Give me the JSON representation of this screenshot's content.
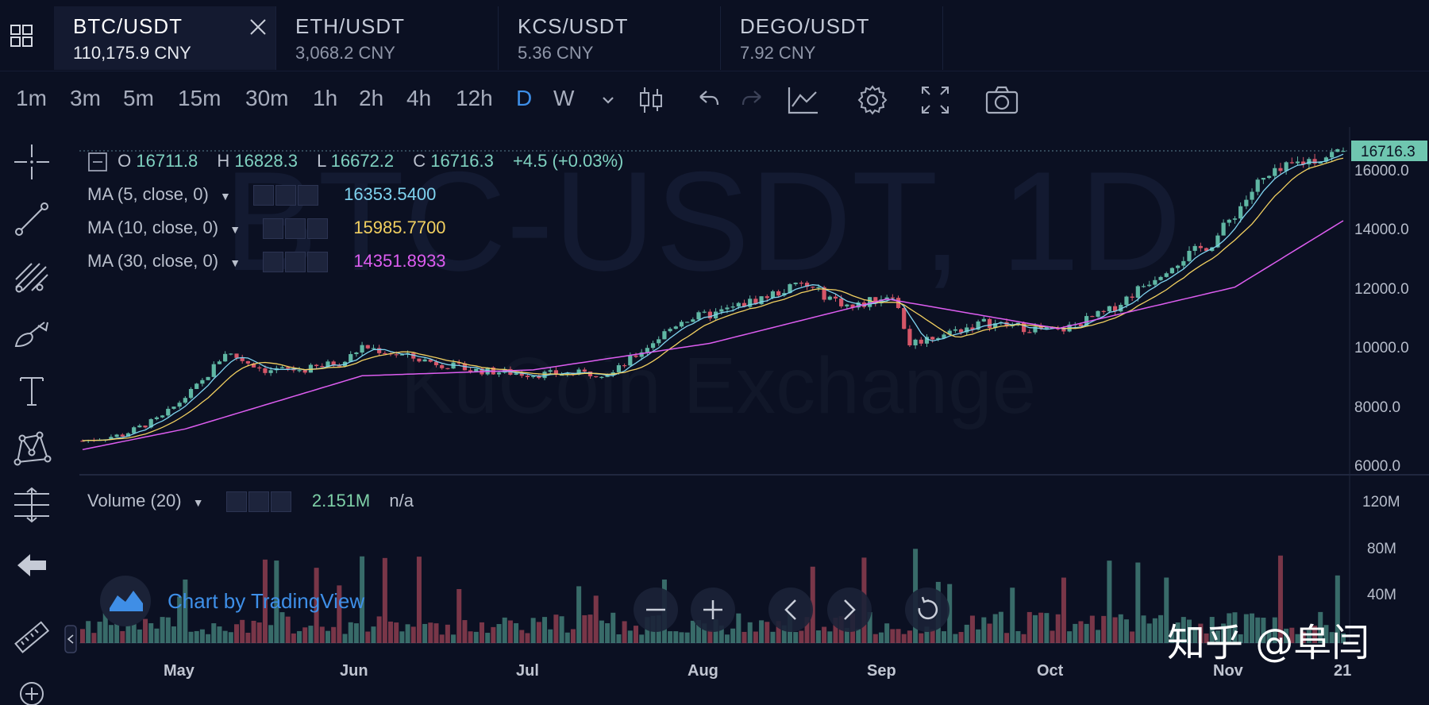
{
  "tabs": [
    {
      "pair": "BTC/USDT",
      "price": "110,175.9 CNY",
      "active": true
    },
    {
      "pair": "ETH/USDT",
      "price": "3,068.2 CNY"
    },
    {
      "pair": "KCS/USDT",
      "price": "5.36 CNY"
    },
    {
      "pair": "DEGO/USDT",
      "price": "7.92 CNY"
    }
  ],
  "timeframes": [
    "1m",
    "3m",
    "5m",
    "15m",
    "30m",
    "1h",
    "2h",
    "4h",
    "12h",
    "D",
    "W"
  ],
  "active_timeframe": "D",
  "icons": {
    "toolbar": [
      "chevron-down-icon",
      "candlestick-icon",
      "undo-icon",
      "redo-icon",
      "indicators-icon",
      "settings-gear-icon",
      "fullscreen-icon",
      "camera-icon"
    ],
    "side": [
      "crosshair-icon",
      "trend-line-icon",
      "fib-tools-icon",
      "brush-icon",
      "text-icon",
      "pattern-icon",
      "measure-icon",
      "back-arrow-icon",
      "ruler-icon",
      "zoom-plus-icon"
    ]
  },
  "watermark": {
    "symbol": "BTC-USDT, 1D",
    "exchange": "KuCoin Exchange"
  },
  "ohlc": {
    "o_label": "O",
    "o": "16711.8",
    "h_label": "H",
    "h": "16828.3",
    "l_label": "L",
    "l": "16672.2",
    "c_label": "C",
    "c": "16716.3",
    "change": "+4.5 (+0.03%)"
  },
  "indicators": {
    "ma5": {
      "label": "MA (5, close, 0)",
      "value": "16353.5400",
      "color": "#7fd3ef"
    },
    "ma10": {
      "label": "MA (10, close, 0)",
      "value": "15985.7700",
      "color": "#f2d060"
    },
    "ma30": {
      "label": "MA (30, close, 0)",
      "value": "14351.8933",
      "color": "#dd5df0"
    },
    "volume": {
      "label": "Volume (20)",
      "value": "2.151M",
      "na": "n/a"
    }
  },
  "price_axis": {
    "labels": [
      "16000.0",
      "14000.0",
      "12000.0",
      "10000.0",
      "8000.0",
      "6000.0"
    ],
    "current": "16716.3"
  },
  "volume_axis": {
    "labels": [
      "120M",
      "80M",
      "40M"
    ]
  },
  "time_axis": {
    "labels": [
      "May",
      "Jun",
      "Jul",
      "Aug",
      "Sep",
      "Oct",
      "Nov",
      "21"
    ]
  },
  "branding": {
    "tradingview": "Chart by TradingView",
    "zhihu": "知乎 @阜闫"
  },
  "colors": {
    "up": "#5fb7a4",
    "down": "#d55668",
    "background": "#0b1022",
    "accent": "#3e8fe8",
    "price_tag": "#6fc6b0"
  },
  "chart_data": {
    "type": "candlestick",
    "series_points": {
      "approx_close": [
        {
          "x": "Apr-13",
          "y": 6900
        },
        {
          "x": "Apr-20",
          "y": 7100
        },
        {
          "x": "Apr-27",
          "y": 7700
        },
        {
          "x": "May-04",
          "y": 8900
        },
        {
          "x": "May-08",
          "y": 9900
        },
        {
          "x": "May-15",
          "y": 9300
        },
        {
          "x": "May-22",
          "y": 9300
        },
        {
          "x": "May-29",
          "y": 9600
        },
        {
          "x": "Jun-01",
          "y": 10100
        },
        {
          "x": "Jun-10",
          "y": 9700
        },
        {
          "x": "Jun-20",
          "y": 9300
        },
        {
          "x": "Jul-01",
          "y": 9150
        },
        {
          "x": "Jul-15",
          "y": 9200
        },
        {
          "x": "Jul-27",
          "y": 11000
        },
        {
          "x": "Aug-02",
          "y": 11200
        },
        {
          "x": "Aug-17",
          "y": 12200
        },
        {
          "x": "Aug-26",
          "y": 11400
        },
        {
          "x": "Sep-02",
          "y": 11900
        },
        {
          "x": "Sep-05",
          "y": 10200
        },
        {
          "x": "Sep-18",
          "y": 10900
        },
        {
          "x": "Oct-01",
          "y": 10600
        },
        {
          "x": "Oct-10",
          "y": 11300
        },
        {
          "x": "Oct-21",
          "y": 12900
        },
        {
          "x": "Oct-28",
          "y": 13600
        },
        {
          "x": "Nov-05",
          "y": 15600
        },
        {
          "x": "Nov-12",
          "y": 16300
        },
        {
          "x": "Nov-20",
          "y": 16716.3
        }
      ],
      "ma30": [
        {
          "x": "Apr-13",
          "y": 6600
        },
        {
          "x": "May-01",
          "y": 7300
        },
        {
          "x": "Jun-01",
          "y": 9100
        },
        {
          "x": "Jul-01",
          "y": 9300
        },
        {
          "x": "Aug-01",
          "y": 10200
        },
        {
          "x": "Sep-01",
          "y": 11700
        },
        {
          "x": "Oct-01",
          "y": 10700
        },
        {
          "x": "Nov-01",
          "y": 12100
        },
        {
          "x": "Nov-20",
          "y": 14351.9
        }
      ]
    },
    "ylim": [
      6000,
      17000
    ],
    "volume_ylim": [
      0,
      130
    ]
  }
}
